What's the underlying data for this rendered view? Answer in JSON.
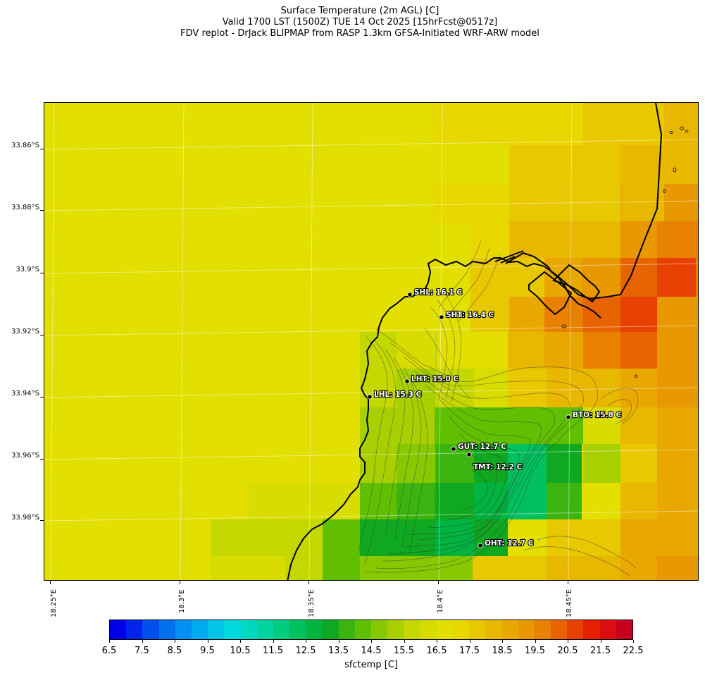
{
  "title": {
    "line1": "Surface Temperature (2m AGL) [C]",
    "line2": "Valid 1700 LST (1500Z) TUE 14 Oct 2025 [15hrFcst@0517z]",
    "line3": "FDV replot - DrJack BLIPMAP from RASP 1.3km GFSA-Initiated WRF-ARW model"
  },
  "y_axis_labels": [
    "33.86°S",
    "33.88°S",
    "33.9°S",
    "33.92°S",
    "33.94°S",
    "33.96°S",
    "33.98°S"
  ],
  "x_axis_labels": [
    "18.25°E",
    "18.3°E",
    "18.35°E",
    "18.4°E",
    "18.45°E"
  ],
  "stations": [
    {
      "code": "SHL",
      "label": "SHL: 16.1 C",
      "temp_c": 16.1
    },
    {
      "code": "SHT",
      "label": "SHT: 16.4 C",
      "temp_c": 16.4
    },
    {
      "code": "LHT",
      "label": "LHT: 15.0 C",
      "temp_c": 15.0
    },
    {
      "code": "LHL",
      "label": "LHL: 15.3 C",
      "temp_c": 15.3
    },
    {
      "code": "BTO",
      "label": "BTO: 15.8 C",
      "temp_c": 15.8
    },
    {
      "code": "GUT",
      "label": "GUT: 12.7 C",
      "temp_c": 12.7
    },
    {
      "code": "TMT",
      "label": "TMT: 12.2 C",
      "temp_c": 12.2
    },
    {
      "code": "OHT",
      "label": "OHT: 12.7 C",
      "temp_c": 12.7
    }
  ],
  "colorbar": {
    "label": "sfctemp [C]",
    "tick_labels": [
      "6.5",
      "7.5",
      "8.5",
      "9.5",
      "10.5",
      "11.5",
      "12.5",
      "13.5",
      "14.5",
      "15.5",
      "16.5",
      "17.5",
      "18.5",
      "19.5",
      "20.5",
      "21.5",
      "22.5"
    ],
    "min": 6.5,
    "max": 22.5,
    "step": 0.5,
    "colors": [
      "#0000e6",
      "#0024ea",
      "#0050ee",
      "#0070f0",
      "#0090f2",
      "#00aaf0",
      "#00c4e8",
      "#00d8e0",
      "#00d8c0",
      "#00d4a0",
      "#00cc80",
      "#00c060",
      "#00b440",
      "#10a820",
      "#3cb410",
      "#60c000",
      "#88c800",
      "#a8d000",
      "#c4d800",
      "#d8dc00",
      "#e3df00",
      "#e8d800",
      "#e8c800",
      "#e8b800",
      "#e8a800",
      "#e89800",
      "#e88000",
      "#e86400",
      "#e84000",
      "#e42000",
      "#dc0c10",
      "#c80020"
    ]
  }
}
